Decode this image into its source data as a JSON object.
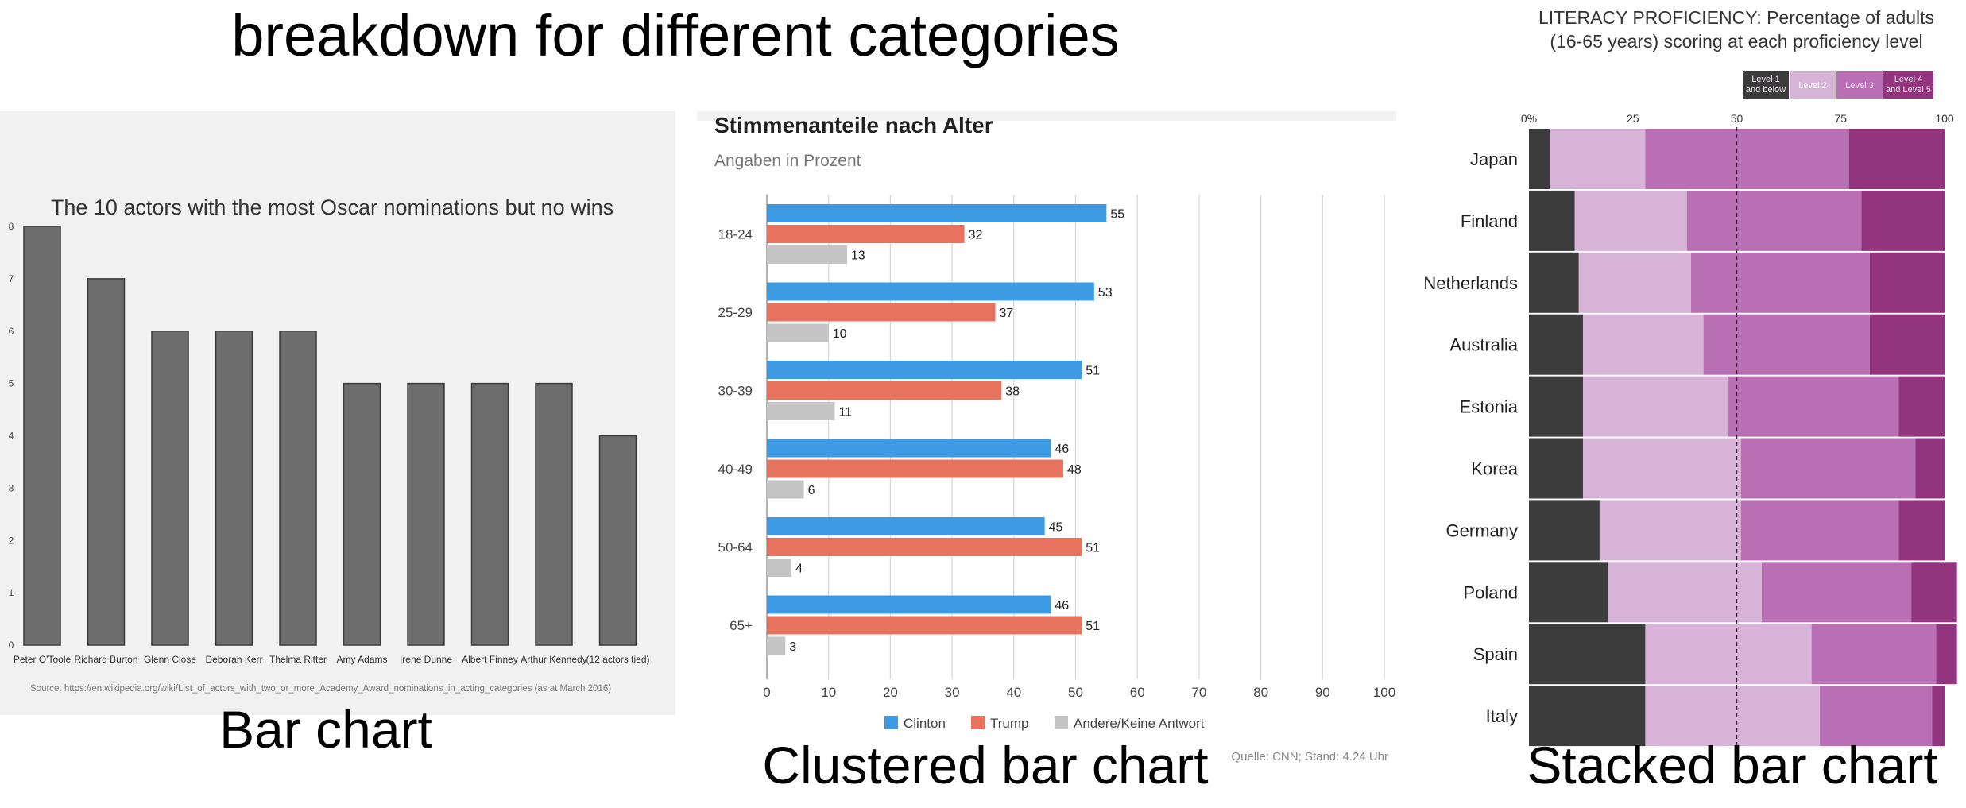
{
  "page": {
    "title": "breakdown for different categories",
    "captions": {
      "bar": "Bar chart",
      "clustered": "Clustered bar chart",
      "stacked": "Stacked bar chart"
    }
  },
  "colors": {
    "bar_gray": "#6d6d6d",
    "clinton": "#3c9be3",
    "trump": "#e8735f",
    "andere": "#c5c5c5",
    "level1": "#3c3c3c",
    "level2": "#d8b3d8",
    "level3": "#b96fb3",
    "level45": "#93347f"
  },
  "chart_data": [
    {
      "type": "bar",
      "title": "The 10 actors with the most Oscar nominations but no wins",
      "categories": [
        "Peter O'Toole",
        "Richard Burton",
        "Glenn Close",
        "Deborah Kerr",
        "Thelma Ritter",
        "Amy Adams",
        "Irene Dunne",
        "Albert Finney",
        "Arthur Kennedy",
        "(12 actors tied)"
      ],
      "values": [
        8,
        7,
        6,
        6,
        6,
        5,
        5,
        5,
        5,
        4
      ],
      "ylim": [
        0,
        8
      ],
      "yticks": [
        "0",
        "1",
        "2",
        "3",
        "4",
        "5",
        "6",
        "7",
        "8"
      ],
      "source": "Source: https://en.wikipedia.org/wiki/List_of_actors_with_two_or_more_Academy_Award_nominations_in_acting_categories (as at March 2016)"
    },
    {
      "type": "bar",
      "orientation": "horizontal",
      "title": "Stimmenanteile nach Alter",
      "subtitle": "Angaben in Prozent",
      "categories": [
        "18-24",
        "25-29",
        "30-39",
        "40-49",
        "50-64",
        "65+"
      ],
      "series": [
        {
          "name": "Clinton",
          "values": [
            55,
            53,
            51,
            46,
            45,
            46
          ]
        },
        {
          "name": "Trump",
          "values": [
            32,
            37,
            38,
            48,
            51,
            51
          ]
        },
        {
          "name": "Andere/Keine Antwort",
          "values": [
            13,
            10,
            11,
            6,
            4,
            3
          ]
        }
      ],
      "xlim": [
        0,
        100
      ],
      "xticks": [
        "0",
        "10",
        "20",
        "30",
        "40",
        "50",
        "60",
        "70",
        "80",
        "90",
        "100"
      ],
      "legend": "bottom",
      "grid": true,
      "source": "Quelle: CNN; Stand: 4.24 Uhr"
    },
    {
      "type": "bar",
      "orientation": "horizontal",
      "stacked": true,
      "title_lines": [
        "LITERACY PROFICIENCY: Percentage of adults",
        "(16-65 years) scoring at each proficiency level"
      ],
      "categories": [
        "Japan",
        "Finland",
        "Netherlands",
        "Australia",
        "Estonia",
        "Korea",
        "Germany",
        "Poland",
        "Spain",
        "Italy"
      ],
      "series": [
        {
          "name": "Level 1 and below",
          "label_lines": [
            "Level 1",
            "and below"
          ],
          "values": [
            5,
            11,
            12,
            13,
            13,
            13,
            17,
            19,
            28,
            28
          ]
        },
        {
          "name": "Level 2",
          "label_lines": [
            "Level 2"
          ],
          "values": [
            23,
            27,
            27,
            29,
            35,
            38,
            34,
            37,
            40,
            42
          ]
        },
        {
          "name": "Level 3",
          "label_lines": [
            "Level 3"
          ],
          "values": [
            49,
            42,
            43,
            40,
            41,
            42,
            38,
            36,
            30,
            27
          ]
        },
        {
          "name": "Level 4 and Level 5",
          "label_lines": [
            "Level 4",
            "and Level 5"
          ],
          "values": [
            23,
            20,
            18,
            18,
            11,
            7,
            11,
            11,
            5,
            3
          ]
        }
      ],
      "xlim": [
        0,
        100
      ],
      "xticks": [
        "0%",
        "25",
        "50",
        "75",
        "100"
      ],
      "reference_line": 50,
      "legend": "top-right"
    }
  ]
}
